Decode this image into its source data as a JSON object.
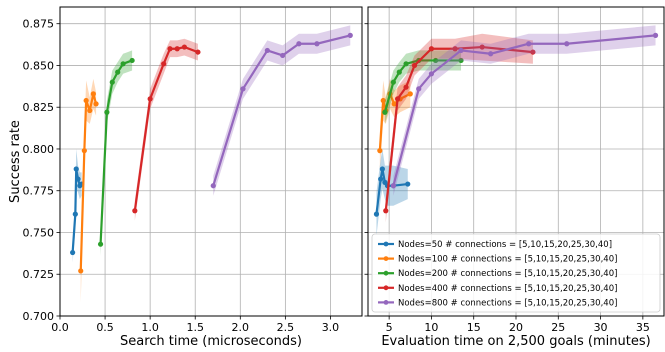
{
  "chart_data": [
    {
      "type": "line",
      "xlabel": "Search time (microseconds)",
      "ylabel": "Success rate",
      "xlim": [
        0.0,
        3.35
      ],
      "ylim": [
        0.7,
        0.885
      ],
      "xticks": [
        "0.0",
        "0.5",
        "1.0",
        "1.5",
        "2.0",
        "2.5",
        "3.0"
      ],
      "xtick_values": [
        0.0,
        0.5,
        1.0,
        1.5,
        2.0,
        2.5,
        3.0
      ],
      "yticks": [
        "0.700",
        "0.725",
        "0.750",
        "0.775",
        "0.800",
        "0.825",
        "0.850",
        "0.875"
      ],
      "ytick_values": [
        0.7,
        0.725,
        0.75,
        0.775,
        0.8,
        0.825,
        0.85,
        0.875
      ],
      "grid": true,
      "series": [
        {
          "color": "#1f77b4",
          "x": [
            0.14,
            0.17,
            0.18,
            0.2,
            0.22,
            0.24
          ],
          "y": [
            0.738,
            0.761,
            0.788,
            0.782,
            0.778,
            0.779
          ],
          "lo": [
            0.732,
            0.752,
            0.776,
            0.774,
            0.77,
            0.772
          ],
          "hi": [
            0.744,
            0.77,
            0.8,
            0.79,
            0.786,
            0.786
          ]
        },
        {
          "color": "#ff7f0e",
          "x": [
            0.23,
            0.27,
            0.29,
            0.33,
            0.37,
            0.4
          ],
          "y": [
            0.727,
            0.799,
            0.829,
            0.823,
            0.833,
            0.827
          ],
          "lo": [
            0.708,
            0.787,
            0.817,
            0.815,
            0.824,
            0.82
          ],
          "hi": [
            0.746,
            0.811,
            0.841,
            0.831,
            0.842,
            0.834
          ]
        },
        {
          "color": "#2ca02c",
          "x": [
            0.45,
            0.52,
            0.58,
            0.64,
            0.7,
            0.8
          ],
          "y": [
            0.743,
            0.822,
            0.84,
            0.846,
            0.851,
            0.853
          ],
          "lo": [
            0.736,
            0.815,
            0.833,
            0.84,
            0.845,
            0.847
          ],
          "hi": [
            0.75,
            0.829,
            0.847,
            0.852,
            0.857,
            0.859
          ]
        },
        {
          "color": "#d62728",
          "x": [
            0.83,
            1.0,
            1.15,
            1.22,
            1.3,
            1.38,
            1.53
          ],
          "y": [
            0.763,
            0.83,
            0.851,
            0.86,
            0.86,
            0.861,
            0.858
          ],
          "lo": [
            0.757,
            0.824,
            0.845,
            0.855,
            0.855,
            0.856,
            0.853
          ],
          "hi": [
            0.769,
            0.836,
            0.857,
            0.865,
            0.865,
            0.866,
            0.863
          ]
        },
        {
          "color": "#9467bd",
          "x": [
            1.7,
            2.03,
            2.3,
            2.47,
            2.65,
            2.85,
            3.22
          ],
          "y": [
            0.778,
            0.836,
            0.859,
            0.856,
            0.863,
            0.863,
            0.868
          ],
          "lo": [
            0.772,
            0.83,
            0.853,
            0.85,
            0.857,
            0.857,
            0.862
          ],
          "hi": [
            0.784,
            0.842,
            0.865,
            0.862,
            0.869,
            0.869,
            0.874
          ]
        }
      ]
    },
    {
      "type": "line",
      "xlabel": "Evaluation time on 2,500 goals (minutes)",
      "xlim": [
        2.5,
        37.5
      ],
      "ylim": [
        0.7,
        0.885
      ],
      "xticks": [
        "5",
        "10",
        "15",
        "20",
        "25",
        "30",
        "35"
      ],
      "xtick_values": [
        5,
        10,
        15,
        20,
        25,
        30,
        35
      ],
      "grid": true,
      "legend_position": "lower-right",
      "series": [
        {
          "name": "Nodes=50 # connections = [5,10,15,20,25,30,40]",
          "color": "#1f77b4",
          "x": [
            3.5,
            4.0,
            4.2,
            4.5,
            4.8,
            5.5,
            7.2
          ],
          "y": [
            0.761,
            0.782,
            0.788,
            0.78,
            0.778,
            0.778,
            0.779
          ],
          "lo": [
            0.748,
            0.77,
            0.776,
            0.77,
            0.766,
            0.766,
            0.77
          ],
          "hi": [
            0.774,
            0.794,
            0.8,
            0.79,
            0.79,
            0.79,
            0.788
          ]
        },
        {
          "name": "Nodes=100 # connections = [5,10,15,20,25,30,40]",
          "color": "#ff7f0e",
          "x": [
            3.9,
            4.3,
            4.6,
            5.1,
            5.6,
            6.3,
            7.5
          ],
          "y": [
            0.799,
            0.829,
            0.823,
            0.833,
            0.827,
            0.83,
            0.833
          ],
          "lo": [
            0.788,
            0.817,
            0.815,
            0.824,
            0.819,
            0.822,
            0.825
          ],
          "hi": [
            0.81,
            0.841,
            0.831,
            0.842,
            0.835,
            0.838,
            0.841
          ]
        },
        {
          "name": "Nodes=200 # connections = [5,10,15,20,25,30,40]",
          "color": "#2ca02c",
          "x": [
            4.5,
            5.5,
            6.2,
            7.0,
            8.5,
            10.5,
            13.5
          ],
          "y": [
            0.822,
            0.84,
            0.846,
            0.851,
            0.853,
            0.853,
            0.853
          ],
          "lo": [
            0.815,
            0.833,
            0.84,
            0.845,
            0.847,
            0.847,
            0.847
          ],
          "hi": [
            0.829,
            0.847,
            0.852,
            0.857,
            0.859,
            0.859,
            0.859
          ]
        },
        {
          "name": "Nodes=400 # connections = [5,10,15,20,25,30,40]",
          "color": "#d62728",
          "x": [
            4.6,
            6.0,
            7.0,
            8.0,
            10.0,
            12.8,
            16.0,
            22.0
          ],
          "y": [
            0.763,
            0.83,
            0.837,
            0.85,
            0.86,
            0.86,
            0.861,
            0.858
          ],
          "lo": [
            0.756,
            0.823,
            0.83,
            0.844,
            0.854,
            0.854,
            0.853,
            0.851
          ],
          "hi": [
            0.77,
            0.837,
            0.844,
            0.856,
            0.866,
            0.866,
            0.869,
            0.865
          ]
        },
        {
          "name": "Nodes=800 # connections = [5,10,15,20,25,30,40]",
          "color": "#9467bd",
          "x": [
            5.5,
            8.5,
            10.0,
            13.5,
            17.0,
            21.5,
            26.0,
            36.5
          ],
          "y": [
            0.778,
            0.836,
            0.845,
            0.859,
            0.857,
            0.863,
            0.863,
            0.868
          ],
          "lo": [
            0.772,
            0.83,
            0.839,
            0.853,
            0.851,
            0.857,
            0.857,
            0.862
          ],
          "hi": [
            0.784,
            0.842,
            0.851,
            0.865,
            0.863,
            0.869,
            0.869,
            0.874
          ]
        }
      ]
    }
  ]
}
